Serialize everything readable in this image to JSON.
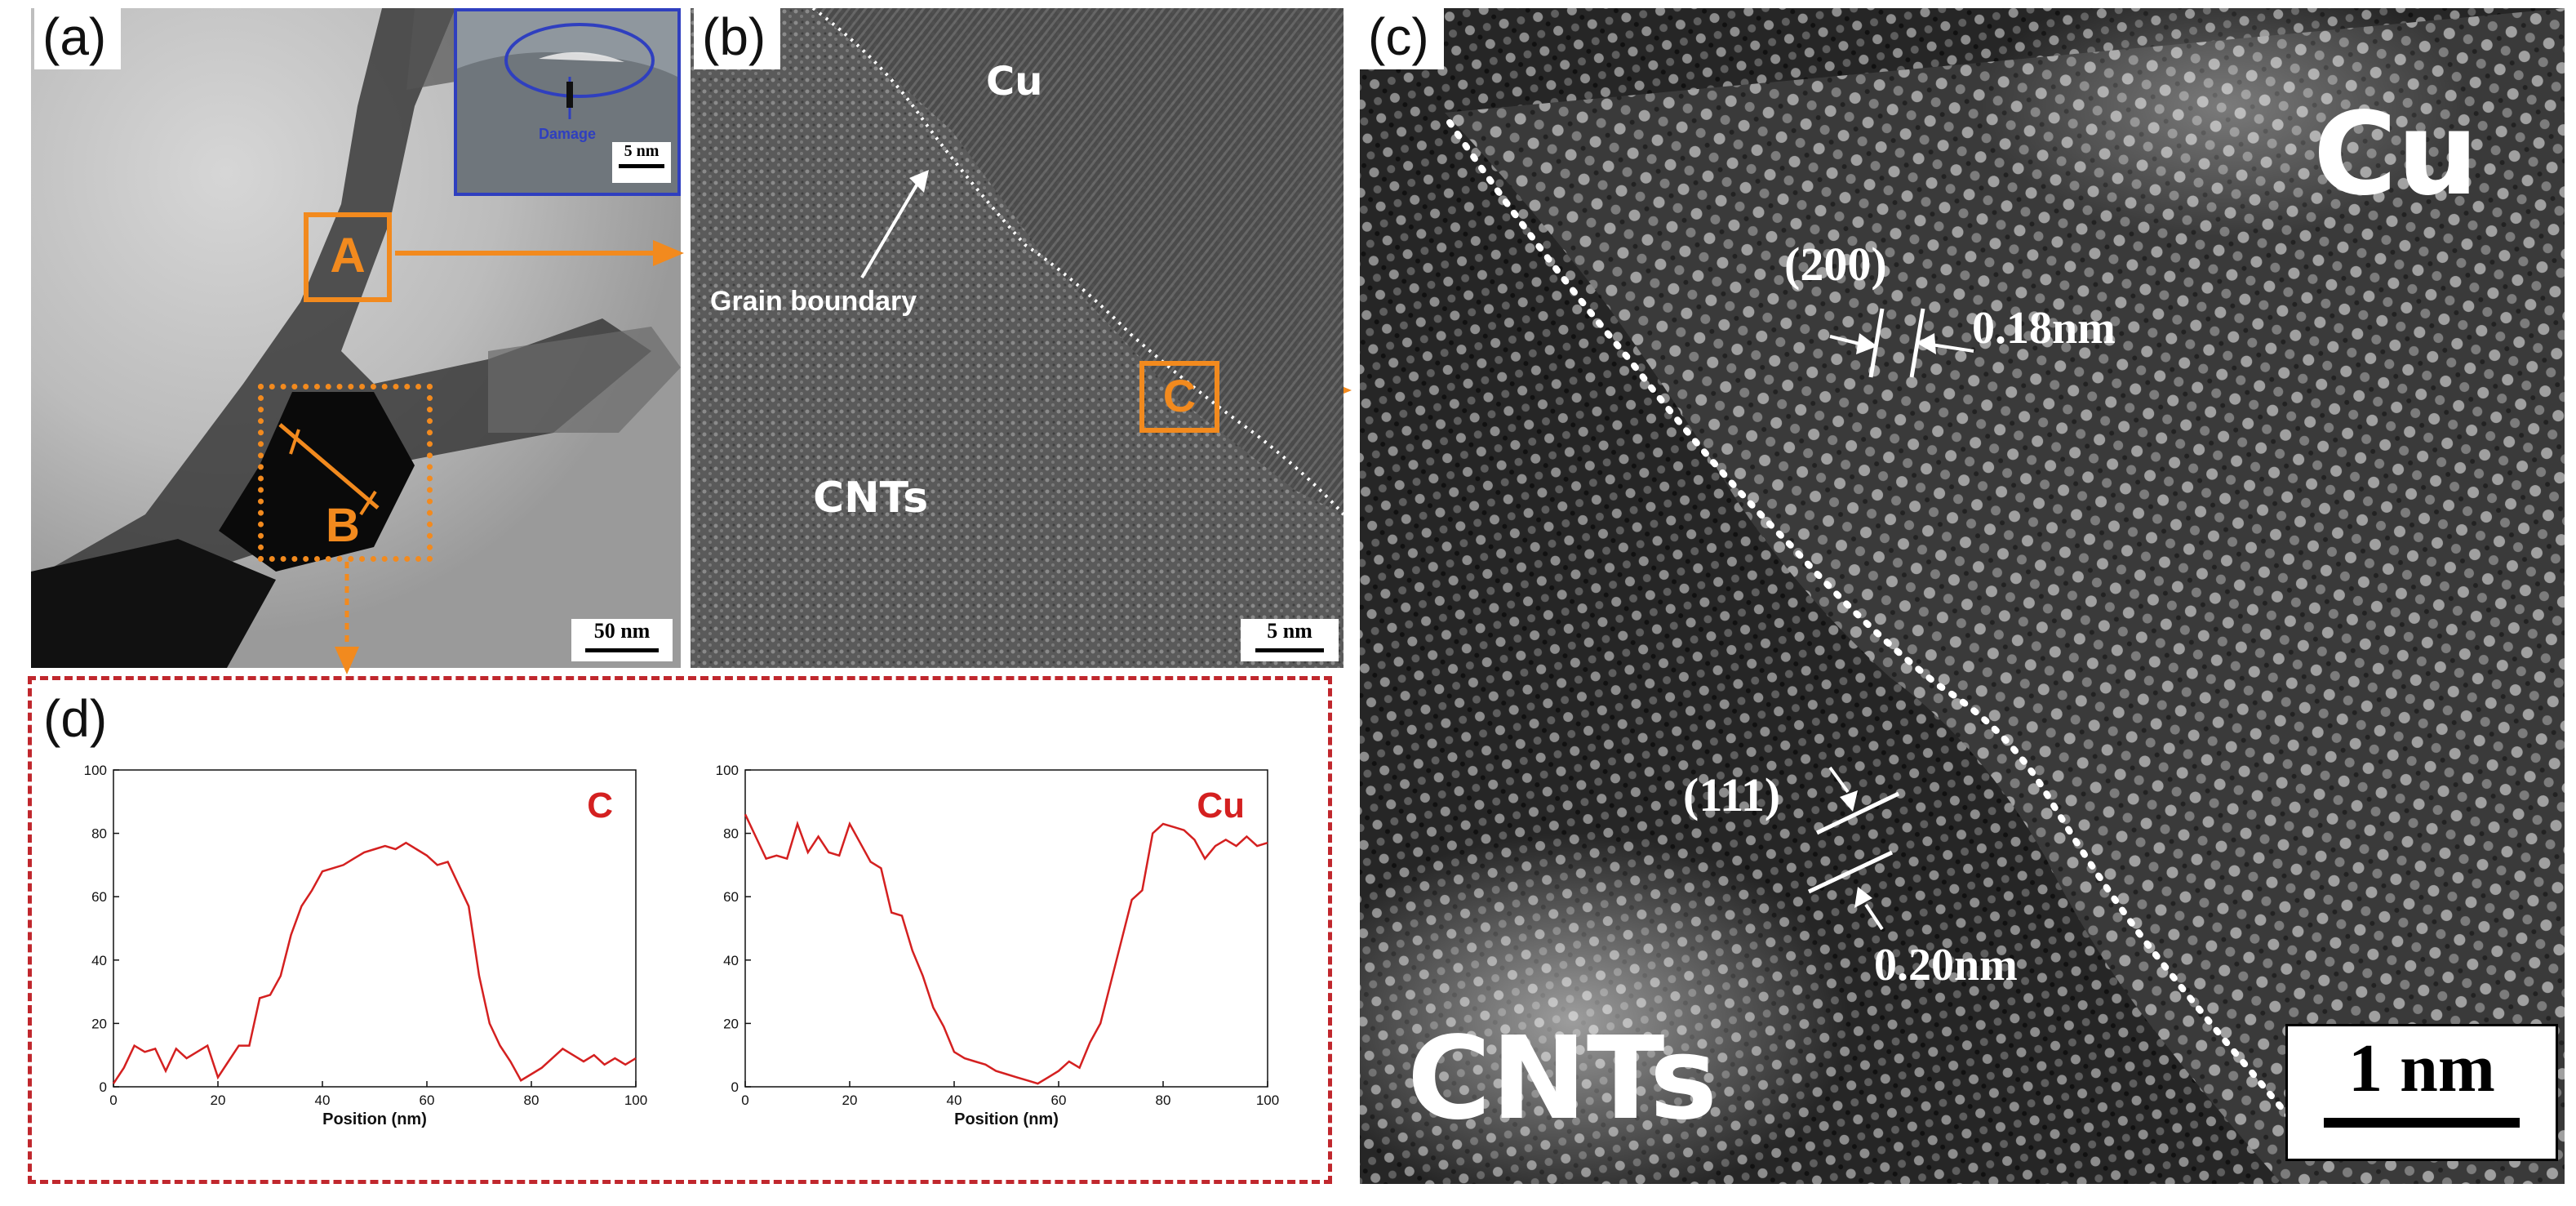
{
  "figure": {
    "panels": {
      "a": {
        "label": "(a)",
        "scale_bar": "50 nm",
        "box_A_label": "A",
        "box_B_label": "B",
        "inset": {
          "annotation": "Damage",
          "scale_bar": "5 nm"
        }
      },
      "b": {
        "label": "(b)",
        "material_top": "Cu",
        "material_bottom": "CNTs",
        "annotation": "Grain boundary",
        "box_C_label": "C",
        "scale_bar": "5 nm"
      },
      "c": {
        "label": "(c)",
        "material_top": "Cu",
        "material_bottom": "CNTs",
        "plane_1": "(200)",
        "spacing_1": "0.18nm",
        "plane_2": "(111)",
        "spacing_2": "0.20nm",
        "scale_bar": "1 nm"
      },
      "d": {
        "label": "(d)"
      }
    },
    "colors": {
      "orange": "#f28a1e",
      "red_dashed_border": "#c0272d",
      "line_red": "#d42020",
      "inset_border": "#2f3fbf"
    }
  },
  "chart_data": [
    {
      "type": "line",
      "title": "C",
      "xlabel": "Position (nm)",
      "ylabel": "",
      "xlim": [
        0,
        100
      ],
      "ylim": [
        0,
        100
      ],
      "xticks": [
        0,
        20,
        40,
        60,
        80,
        100
      ],
      "yticks": [
        0,
        20,
        40,
        60,
        80,
        100
      ],
      "x": [
        0,
        2,
        4,
        6,
        8,
        10,
        12,
        14,
        16,
        18,
        20,
        22,
        24,
        26,
        28,
        30,
        32,
        34,
        36,
        38,
        40,
        42,
        44,
        46,
        48,
        50,
        52,
        54,
        56,
        58,
        60,
        62,
        64,
        66,
        68,
        70,
        72,
        74,
        76,
        78,
        80,
        82,
        84,
        86,
        88,
        90,
        92,
        94,
        96,
        98,
        100
      ],
      "values": [
        1,
        6,
        13,
        11,
        12,
        5,
        12,
        9,
        11,
        13,
        3,
        8,
        13,
        13,
        28,
        29,
        35,
        48,
        57,
        62,
        68,
        69,
        70,
        72,
        74,
        75,
        76,
        75,
        77,
        75,
        73,
        70,
        71,
        64,
        57,
        35,
        20,
        13,
        8,
        2,
        4,
        6,
        9,
        12,
        10,
        8,
        10,
        7,
        9,
        7,
        9
      ]
    },
    {
      "type": "line",
      "title": "Cu",
      "xlabel": "Position (nm)",
      "ylabel": "",
      "xlim": [
        0,
        100
      ],
      "ylim": [
        0,
        100
      ],
      "xticks": [
        0,
        20,
        40,
        60,
        80,
        100
      ],
      "yticks": [
        0,
        20,
        40,
        60,
        80,
        100
      ],
      "x": [
        0,
        2,
        4,
        6,
        8,
        10,
        12,
        14,
        16,
        18,
        20,
        22,
        24,
        26,
        28,
        30,
        32,
        34,
        36,
        38,
        40,
        42,
        44,
        46,
        48,
        50,
        52,
        54,
        56,
        58,
        60,
        62,
        64,
        66,
        68,
        70,
        72,
        74,
        76,
        78,
        80,
        82,
        84,
        86,
        88,
        90,
        92,
        94,
        96,
        98,
        100
      ],
      "values": [
        86,
        79,
        72,
        73,
        72,
        83,
        74,
        79,
        74,
        73,
        83,
        77,
        71,
        69,
        55,
        54,
        43,
        35,
        25,
        19,
        11,
        9,
        8,
        7,
        5,
        4,
        3,
        2,
        1,
        3,
        5,
        8,
        6,
        14,
        20,
        33,
        46,
        59,
        62,
        80,
        83,
        82,
        81,
        78,
        72,
        76,
        78,
        76,
        79,
        76,
        77
      ]
    }
  ]
}
